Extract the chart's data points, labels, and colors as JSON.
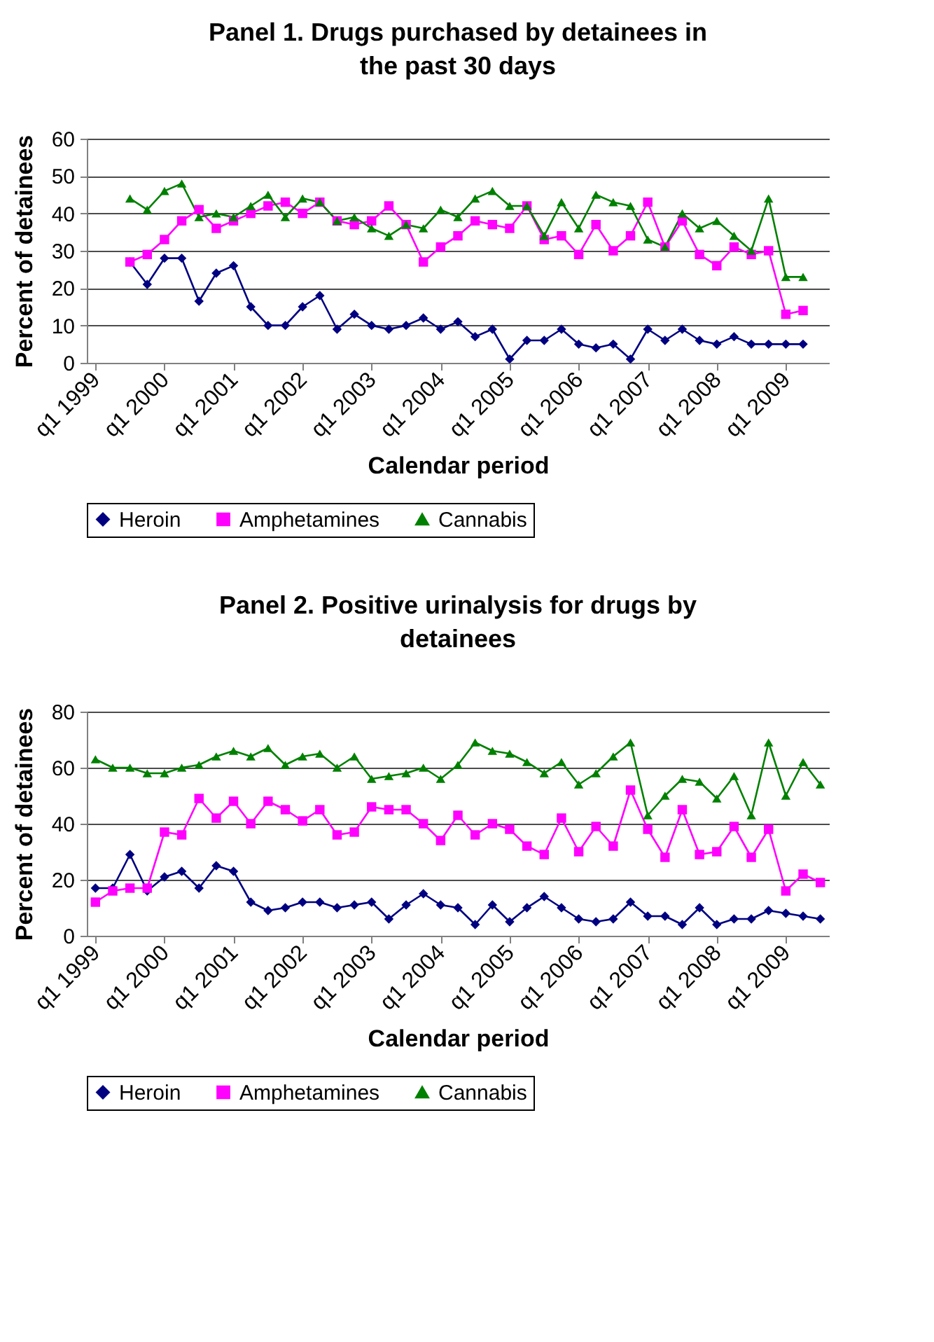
{
  "chart_data": [
    {
      "type": "line",
      "title": "Panel 1. Drugs purchased by detainees in the past 30 days",
      "xlabel": "Calendar period",
      "ylabel": "Percent of detainees",
      "categories": [
        "q1 1999",
        null,
        null,
        null,
        "q1 2000",
        null,
        null,
        null,
        "q1 2001",
        null,
        null,
        null,
        "q1 2002",
        null,
        null,
        null,
        "q1 2003",
        null,
        null,
        null,
        "q1 2004",
        null,
        null,
        null,
        "q1 2005",
        null,
        null,
        null,
        "q1 2006",
        null,
        null,
        null,
        "q1 2007",
        null,
        null,
        null,
        "q1 2008",
        null,
        null,
        null,
        "q1 2009",
        null,
        null
      ],
      "series": [
        {
          "name": "Heroin",
          "color": "#000080",
          "marker": "diamond",
          "values": [
            null,
            null,
            27,
            21,
            28,
            28,
            16.5,
            24,
            26,
            15,
            10,
            10,
            15,
            18,
            9,
            13,
            10,
            9,
            10,
            12,
            9,
            11,
            7,
            9,
            1,
            6,
            6,
            9,
            5,
            4,
            5,
            1,
            9,
            6,
            9,
            6,
            5,
            7,
            5,
            5,
            5,
            5,
            null
          ]
        },
        {
          "name": "Amphetamines",
          "color": "#ff00ff",
          "marker": "square",
          "values": [
            null,
            null,
            27,
            29,
            33,
            38,
            41,
            36,
            38,
            40,
            42,
            43,
            40,
            43,
            38,
            37,
            38,
            42,
            37,
            27,
            31,
            34,
            38,
            37,
            36,
            42,
            33,
            34,
            29,
            37,
            30,
            34,
            43,
            31,
            38,
            29,
            26,
            31,
            29,
            30,
            13,
            14,
            null
          ]
        },
        {
          "name": "Cannabis",
          "color": "#008000",
          "marker": "triangle",
          "values": [
            null,
            null,
            44,
            41,
            46,
            48,
            39,
            40,
            39,
            42,
            45,
            39,
            44,
            43,
            38,
            39,
            36,
            34,
            37,
            36,
            41,
            39,
            44,
            46,
            42,
            42,
            34,
            43,
            36,
            45,
            43,
            42,
            33,
            31,
            40,
            36,
            38,
            34,
            30,
            44,
            23,
            23,
            null
          ]
        }
      ],
      "ylim": [
        0,
        60
      ],
      "yticks": [
        0,
        10,
        20,
        30,
        40,
        50,
        60
      ],
      "grid": "y",
      "legend": "bottom"
    },
    {
      "type": "line",
      "title": "Panel 2. Positive urinalysis for drugs by detainees",
      "xlabel": "Calendar period",
      "ylabel": "Percent of detainees",
      "categories": [
        "q1 1999",
        null,
        null,
        null,
        "q1 2000",
        null,
        null,
        null,
        "q1 2001",
        null,
        null,
        null,
        "q1 2002",
        null,
        null,
        null,
        "q1 2003",
        null,
        null,
        null,
        "q1 2004",
        null,
        null,
        null,
        "q1 2005",
        null,
        null,
        null,
        "q1 2006",
        null,
        null,
        null,
        "q1 2007",
        null,
        null,
        null,
        "q1 2008",
        null,
        null,
        null,
        "q1 2009",
        null,
        null
      ],
      "series": [
        {
          "name": "Heroin",
          "color": "#000080",
          "marker": "diamond",
          "values": [
            17,
            17,
            29,
            16,
            21,
            23,
            17,
            25,
            23,
            12,
            9,
            10,
            12,
            12,
            10,
            11,
            12,
            6,
            11,
            15,
            11,
            10,
            4,
            11,
            5,
            10,
            14,
            10,
            6,
            5,
            6,
            12,
            7,
            7,
            4,
            10,
            4,
            6,
            6,
            9,
            8,
            7,
            6
          ]
        },
        {
          "name": "Amphetamines",
          "color": "#ff00ff",
          "marker": "square",
          "values": [
            12,
            16,
            17,
            17,
            37,
            36,
            49,
            42,
            48,
            40,
            48,
            45,
            41,
            45,
            36,
            37,
            46,
            45,
            45,
            40,
            34,
            43,
            36,
            40,
            38,
            32,
            29,
            42,
            30,
            39,
            32,
            52,
            38,
            28,
            45,
            29,
            30,
            39,
            28,
            38,
            16,
            22,
            19
          ]
        },
        {
          "name": "Cannabis",
          "color": "#008000",
          "marker": "triangle",
          "values": [
            63,
            60,
            60,
            58,
            58,
            60,
            61,
            64,
            66,
            64,
            67,
            61,
            64,
            65,
            60,
            64,
            56,
            57,
            58,
            60,
            56,
            61,
            69,
            66,
            65,
            62,
            58,
            62,
            54,
            58,
            64,
            69,
            43,
            50,
            56,
            55,
            49,
            57,
            43,
            69,
            50,
            62,
            54
          ]
        }
      ],
      "ylim": [
        0,
        80
      ],
      "yticks": [
        0,
        20,
        40,
        60,
        80
      ],
      "grid": "y",
      "legend": "bottom"
    }
  ]
}
